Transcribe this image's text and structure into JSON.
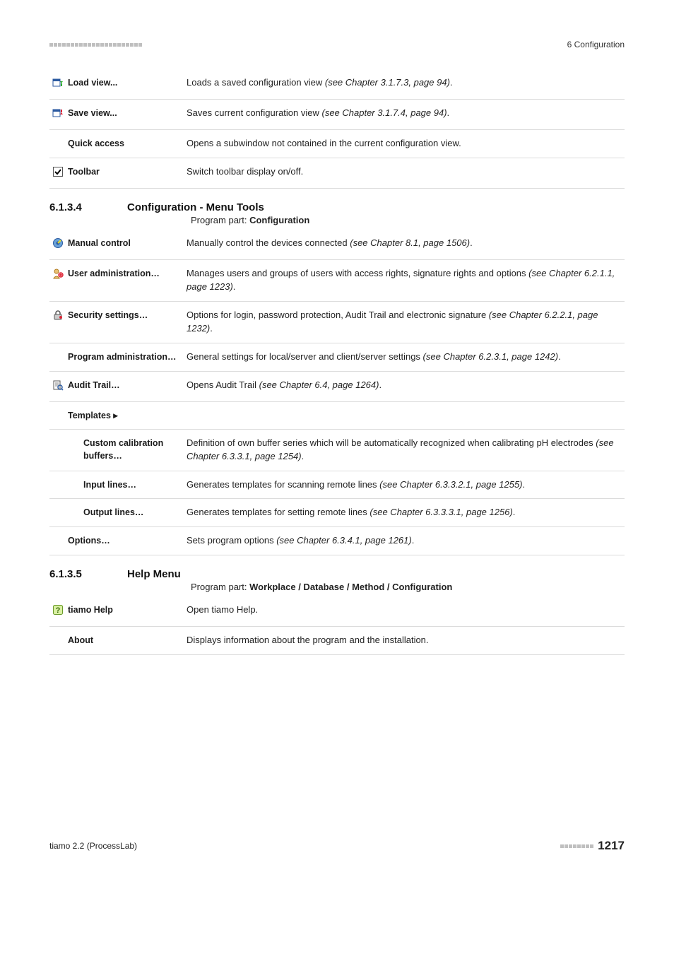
{
  "header": {
    "section_label": "6 Configuration"
  },
  "table1": {
    "rows": [
      {
        "icon": "load-view",
        "indent": 0,
        "label": "Load view...",
        "desc_pre": "Loads a saved configuration view ",
        "desc_em": "(see Chapter 3.1.7.3, page 94)",
        "desc_post": "."
      },
      {
        "icon": "save-view",
        "indent": 0,
        "label": "Save view...",
        "desc_pre": "Saves current configuration view ",
        "desc_em": "(see Chapter 3.1.7.4, page 94)",
        "desc_post": "."
      },
      {
        "icon": "",
        "indent": 1,
        "label": "Quick access",
        "desc_pre": "Opens a subwindow not contained in the current configuration view.",
        "desc_em": "",
        "desc_post": ""
      },
      {
        "icon": "checkbox",
        "indent": 0,
        "label": "Toolbar",
        "desc_pre": "Switch toolbar display on/off.",
        "desc_em": "",
        "desc_post": ""
      }
    ]
  },
  "heading1": {
    "num": "6.1.3.4",
    "title": "Configuration - Menu Tools"
  },
  "program_part1": {
    "label": "Program part: ",
    "value": "Configuration"
  },
  "table2": {
    "rows": [
      {
        "icon": "manual",
        "indent": 0,
        "label": "Manual control",
        "desc_pre": "Manually control the devices connected ",
        "desc_em": "(see Chapter 8.1, page 1506)",
        "desc_post": "."
      },
      {
        "icon": "user-admin",
        "indent": 0,
        "label": "User administration…",
        "desc_pre": "Manages users and groups of users with access rights, signature rights and options ",
        "desc_em": "(see Chapter 6.2.1.1, page 1223)",
        "desc_post": "."
      },
      {
        "icon": "security",
        "indent": 0,
        "label": "Security settings…",
        "desc_pre": "Options for login, password protection, Audit Trail and electronic signature ",
        "desc_em": "(see Chapter 6.2.2.1, page 1232)",
        "desc_post": "."
      },
      {
        "icon": "",
        "indent": 1,
        "label": "Program administration…",
        "desc_pre": "General settings for local/server and client/server settings ",
        "desc_em": "(see Chapter 6.2.3.1, page 1242)",
        "desc_post": "."
      },
      {
        "icon": "audit",
        "indent": 0,
        "label": "Audit Trail…",
        "desc_pre": "Opens Audit Trail ",
        "desc_em": "(see Chapter 6.4, page 1264)",
        "desc_post": "."
      },
      {
        "icon": "",
        "indent": 1,
        "label": "Templates ▸",
        "desc_pre": "",
        "desc_em": "",
        "desc_post": "",
        "no_desc": true
      },
      {
        "icon": "",
        "indent": 2,
        "label": "Custom calibration buffers…",
        "desc_pre": "Definition of own buffer series which will be automatically recognized when calibrating pH electrodes ",
        "desc_em": "(see Chapter 6.3.3.1, page 1254)",
        "desc_post": "."
      },
      {
        "icon": "",
        "indent": 2,
        "label": "Input lines…",
        "desc_pre": "Generates templates for scanning remote lines ",
        "desc_em": "(see Chapter 6.3.3.2.1, page 1255)",
        "desc_post": "."
      },
      {
        "icon": "",
        "indent": 2,
        "label": "Output lines…",
        "desc_pre": "Generates templates for setting remote lines ",
        "desc_em": "(see Chapter 6.3.3.3.1, page 1256)",
        "desc_post": "."
      },
      {
        "icon": "",
        "indent": 1,
        "label": "Options…",
        "desc_pre": "Sets program options ",
        "desc_em": "(see Chapter 6.3.4.1, page 1261)",
        "desc_post": "."
      }
    ]
  },
  "heading2": {
    "num": "6.1.3.5",
    "title": "Help Menu"
  },
  "program_part2": {
    "label": "Program part: ",
    "value": "Workplace / Database / Method / Configuration"
  },
  "table3": {
    "rows": [
      {
        "icon": "help",
        "indent": 0,
        "label": "tiamo Help",
        "desc_pre": "Open tiamo Help.",
        "desc_em": "",
        "desc_post": ""
      },
      {
        "icon": "",
        "indent": 1,
        "label": "About",
        "desc_pre": "Displays information about the program and the installation.",
        "desc_em": "",
        "desc_post": ""
      }
    ]
  },
  "footer": {
    "product": "tiamo 2.2 (ProcessLab)",
    "page": "1217"
  }
}
